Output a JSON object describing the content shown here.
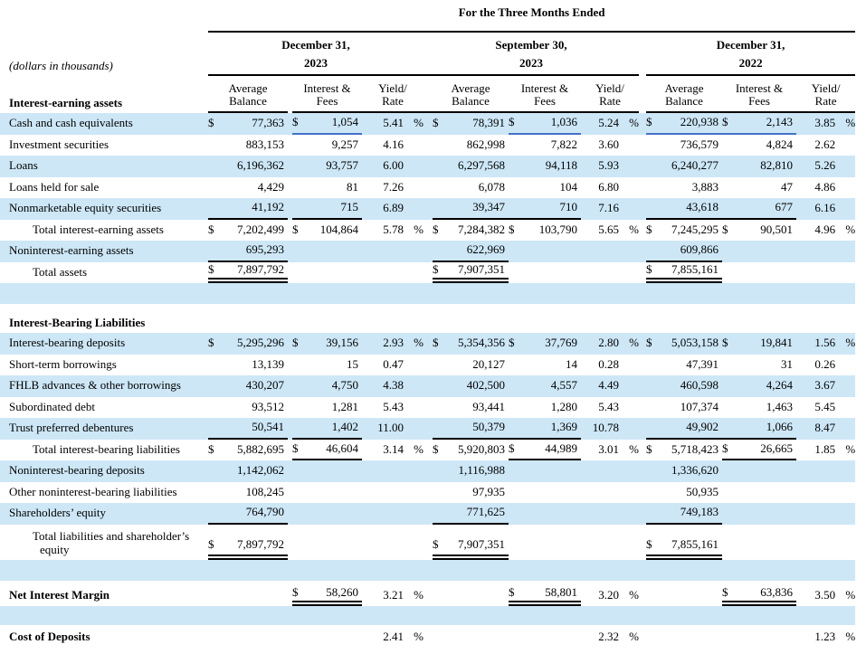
{
  "title": "For the Three Months Ended",
  "note": "(dollars in thousands)",
  "colors": {
    "stripe": "#cde7f7",
    "blue_rule": "#4472c4"
  },
  "periods": [
    {
      "date": "December 31,",
      "year": "2023"
    },
    {
      "date": "September 30,",
      "year": "2023"
    },
    {
      "date": "December 31,",
      "year": "2022"
    }
  ],
  "column_headers": [
    [
      "Average",
      "Balance"
    ],
    [
      "Interest &",
      "Fees"
    ],
    [
      "Yield/",
      "Rate"
    ]
  ],
  "rows": [
    {
      "k": "section1",
      "label": "Interest-earning assets",
      "bold": true,
      "inHeader": true
    },
    {
      "k": "data",
      "stripe": true,
      "label": "Cash and cash equivalents",
      "cells": [
        "$ 77,363",
        "$ 1,054",
        "5.41 %",
        "$ 78,391",
        "$ 1,036",
        "5.24 %",
        "$ 220,938",
        "$ 2,143",
        "3.85 %"
      ],
      "blue": [
        1,
        4,
        6,
        7
      ]
    },
    {
      "k": "data",
      "label": "Investment securities",
      "cells": [
        "883,153",
        "9,257",
        "4.16",
        "862,998",
        "7,822",
        "3.60",
        "736,579",
        "4,824",
        "2.62"
      ]
    },
    {
      "k": "data",
      "stripe": true,
      "label": "Loans",
      "cells": [
        "6,196,362",
        "93,757",
        "6.00",
        "6,297,568",
        "94,118",
        "5.93",
        "6,240,277",
        "82,810",
        "5.26"
      ]
    },
    {
      "k": "data",
      "label": "Loans held for sale",
      "cells": [
        "4,429",
        "81",
        "7.26",
        "6,078",
        "104",
        "6.80",
        "3,883",
        "47",
        "4.86"
      ]
    },
    {
      "k": "data",
      "stripe": true,
      "label": "Nonmarketable equity securities",
      "cells": [
        "41,192",
        "715",
        "6.89",
        "39,347",
        "710",
        "7.16",
        "43,618",
        "677",
        "6.16"
      ],
      "ul": [
        0,
        1,
        3,
        4,
        6,
        7
      ]
    },
    {
      "k": "data",
      "label": "Total interest-earning assets",
      "indent": true,
      "cells": [
        "$ 7,202,499",
        "$ 104,864",
        "5.78 %",
        "$ 7,284,382",
        "$ 103,790",
        "5.65 %",
        "$ 7,245,295",
        "$ 90,501",
        "4.96 %"
      ]
    },
    {
      "k": "data",
      "stripe": true,
      "label": "Noninterest-earning assets",
      "cells": [
        "695,293",
        "",
        "",
        "622,969",
        "",
        "",
        "609,866",
        "",
        ""
      ],
      "ul": [
        0,
        3,
        6
      ]
    },
    {
      "k": "data",
      "label": "Total assets",
      "indent": true,
      "cells": [
        "$ 7,897,792",
        "",
        "",
        "$ 7,907,351",
        "",
        "",
        "$ 7,855,161",
        "",
        ""
      ],
      "dbl": [
        0,
        3,
        6
      ]
    },
    {
      "k": "blank",
      "stripe": true
    },
    {
      "k": "gap"
    },
    {
      "k": "section",
      "label": "Interest-Bearing Liabilities",
      "bold": true
    },
    {
      "k": "data",
      "stripe": true,
      "label": "Interest-bearing deposits",
      "cells": [
        "$ 5,295,296",
        "$ 39,156",
        "2.93 %",
        "$ 5,354,356",
        "$ 37,769",
        "2.80 %",
        "$ 5,053,158",
        "$ 19,841",
        "1.56 %"
      ]
    },
    {
      "k": "data",
      "label": "Short-term borrowings",
      "cells": [
        "13,139",
        "15",
        "0.47",
        "20,127",
        "14",
        "0.28",
        "47,391",
        "31",
        "0.26"
      ]
    },
    {
      "k": "data",
      "stripe": true,
      "label": "FHLB advances & other borrowings",
      "cells": [
        "430,207",
        "4,750",
        "4.38",
        "402,500",
        "4,557",
        "4.49",
        "460,598",
        "4,264",
        "3.67"
      ]
    },
    {
      "k": "data",
      "label": "Subordinated debt",
      "cells": [
        "93,512",
        "1,281",
        "5.43",
        "93,441",
        "1,280",
        "5.43",
        "107,374",
        "1,463",
        "5.45"
      ]
    },
    {
      "k": "data",
      "stripe": true,
      "label": "Trust preferred debentures",
      "cells": [
        "50,541",
        "1,402",
        "11.00",
        "50,379",
        "1,369",
        "10.78",
        "49,902",
        "1,066",
        "8.47"
      ],
      "ul": [
        0,
        1,
        3,
        4,
        6,
        7
      ]
    },
    {
      "k": "data",
      "label": "Total interest-bearing liabilities",
      "indent": true,
      "cells": [
        "$ 5,882,695",
        "$ 46,604",
        "3.14 %",
        "$ 5,920,803",
        "$ 44,989",
        "3.01 %",
        "$ 5,718,423",
        "$ 26,665",
        "1.85 %"
      ],
      "ul": [
        1,
        4,
        7
      ]
    },
    {
      "k": "data",
      "stripe": true,
      "label": "Noninterest-bearing deposits",
      "cells": [
        "1,142,062",
        "",
        "",
        "1,116,988",
        "",
        "",
        "1,336,620",
        "",
        ""
      ]
    },
    {
      "k": "data",
      "label": "Other noninterest-bearing liabilities",
      "cells": [
        "108,245",
        "",
        "",
        "97,935",
        "",
        "",
        "50,935",
        "",
        ""
      ]
    },
    {
      "k": "data",
      "stripe": true,
      "label": "Shareholders’ equity",
      "cells": [
        "764,790",
        "",
        "",
        "771,625",
        "",
        "",
        "749,183",
        "",
        ""
      ],
      "ul": [
        0,
        3,
        6
      ]
    },
    {
      "k": "tall",
      "label": "Total liabilities and shareholder’s equity",
      "indent2": true,
      "cells": [
        "$ 7,897,792",
        "",
        "",
        "$ 7,907,351",
        "",
        "",
        "$ 7,855,161",
        "",
        ""
      ],
      "dbl": [
        0,
        3,
        6
      ]
    },
    {
      "k": "blank",
      "stripe": true
    },
    {
      "k": "gap2"
    },
    {
      "k": "nim",
      "label": "Net Interest Margin",
      "bold": true,
      "cells": [
        "",
        "$ 58,260",
        "3.21 %",
        "",
        "$ 58,801",
        "3.20 %",
        "",
        "$ 63,836",
        "3.50 %"
      ],
      "dbl": [
        1,
        4,
        7
      ]
    },
    {
      "k": "blank2",
      "stripe": true
    },
    {
      "k": "gap3"
    },
    {
      "k": "cod",
      "label": "Cost of Deposits",
      "bold": true,
      "cells": [
        "",
        "",
        "2.41 %",
        "",
        "",
        "2.32 %",
        "",
        "",
        "1.23 %"
      ]
    }
  ]
}
